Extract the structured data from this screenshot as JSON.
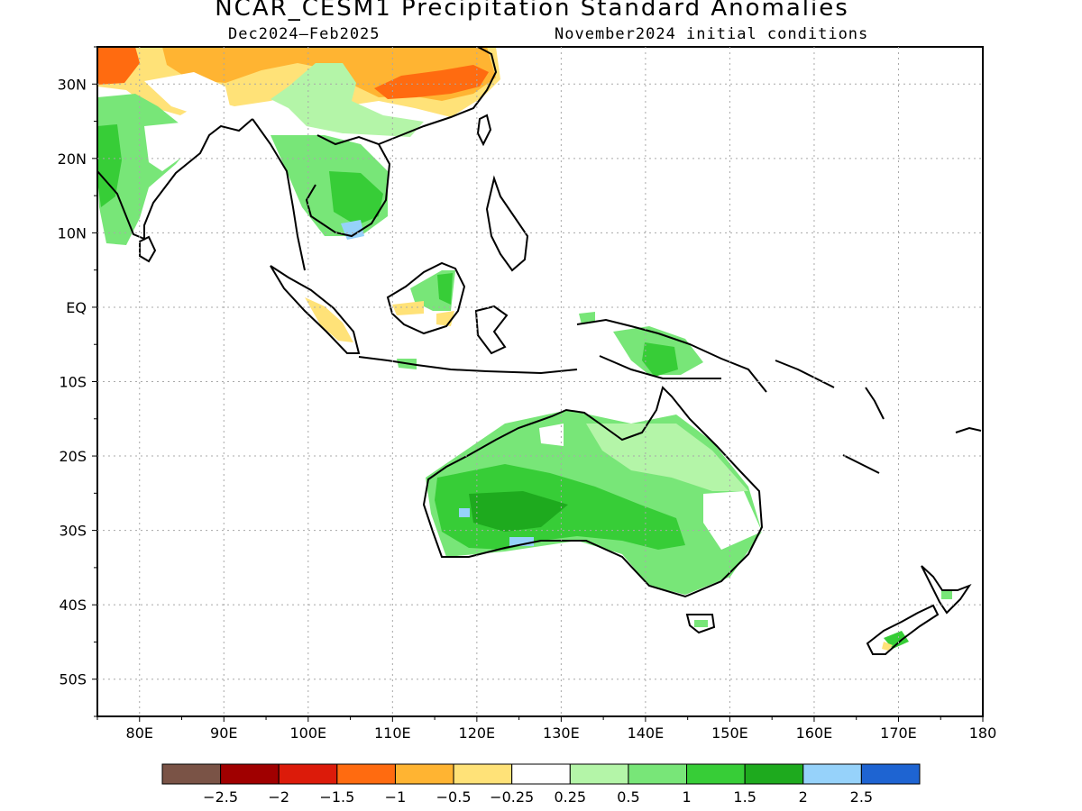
{
  "title": "NCAR_CESM1 Precipitation Standard Anomalies",
  "subtitle_left": "Dec2024–Feb2025",
  "subtitle_right": "November2024 initial conditions",
  "map": {
    "projection": "equirectangular",
    "lon_range": [
      75,
      180
    ],
    "lat_range": [
      -55,
      35
    ],
    "grid": true,
    "lon_labels": [
      "80E",
      "90E",
      "100E",
      "110E",
      "120E",
      "130E",
      "140E",
      "150E",
      "160E",
      "170E",
      "180"
    ],
    "lat_labels": [
      "30N",
      "20N",
      "10N",
      "EQ",
      "10S",
      "20S",
      "30S",
      "40S",
      "50S"
    ]
  },
  "colorbar": {
    "colors": [
      "#7a5346",
      "#a00000",
      "#dc1b0a",
      "#ff6b10",
      "#ffb432",
      "#ffe278",
      "#ffffff",
      "#b4f5a8",
      "#78e678",
      "#37cd37",
      "#1eaa1e",
      "#96d2fa",
      "#1e64d2"
    ],
    "labels": [
      "−2.5",
      "−2",
      "−1.5",
      "−1",
      "−0.5",
      "−0.25",
      "0.25",
      "0.5",
      "1",
      "1.5",
      "2",
      "2.5"
    ]
  }
}
